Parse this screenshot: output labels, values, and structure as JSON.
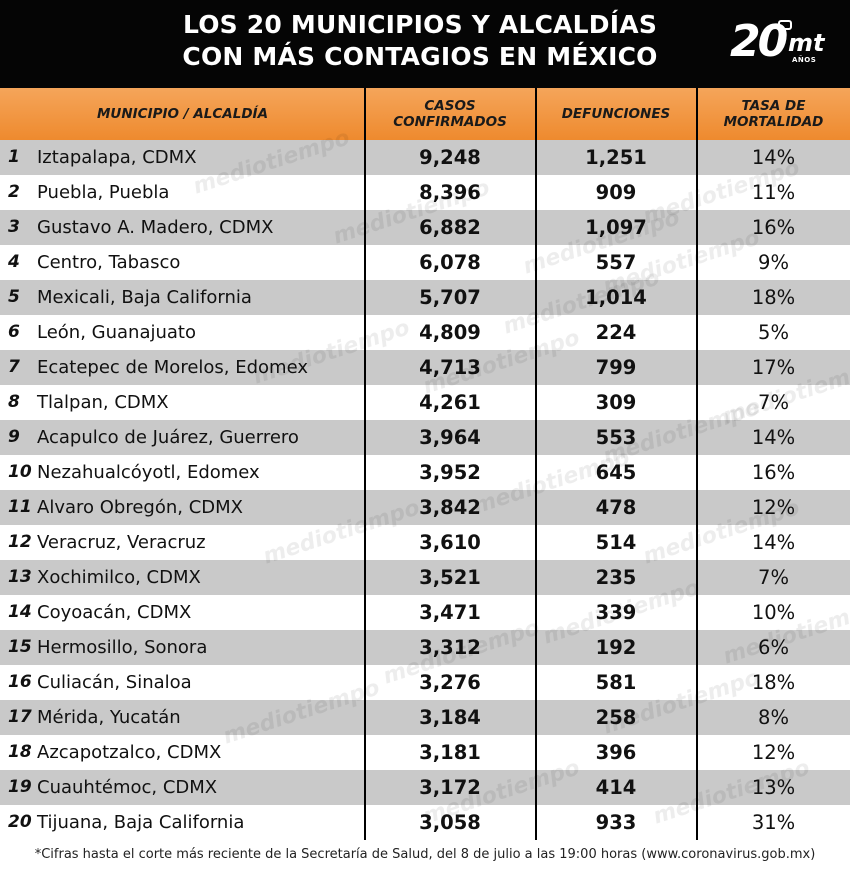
{
  "header": {
    "title_line1": "LOS 20 MUNICIPIOS Y ALCALDÍAS",
    "title_line2": "CON MÁS CONTAGIOS EN MÉXICO",
    "logo_number": "20",
    "logo_brand": "mt",
    "logo_sub": "AÑOS"
  },
  "columns": {
    "municipio": "MUNICIPIO / ALCALDÍA",
    "casos": "CASOS CONFIRMADOS",
    "defunciones": "DEFUNCIONES",
    "tasa": "TASA DE MORTALIDAD"
  },
  "watermark": "mediotiempo",
  "chart_data": {
    "type": "table",
    "title": "LOS 20 MUNICIPIOS Y ALCALDÍAS CON MÁS CONTAGIOS EN MÉXICO",
    "columns": [
      "MUNICIPIO / ALCALDÍA",
      "CASOS CONFIRMADOS",
      "DEFUNCIONES",
      "TASA DE MORTALIDAD"
    ],
    "rows": [
      {
        "rank": "1",
        "municipio": "Iztapalapa, CDMX",
        "casos": "9,248",
        "defunciones": "1,251",
        "tasa": "14%"
      },
      {
        "rank": "2",
        "municipio": "Puebla, Puebla",
        "casos": "8,396",
        "defunciones": "909",
        "tasa": "11%"
      },
      {
        "rank": "3",
        "municipio": "Gustavo A. Madero, CDMX",
        "casos": "6,882",
        "defunciones": "1,097",
        "tasa": "16%"
      },
      {
        "rank": "4",
        "municipio": "Centro, Tabasco",
        "casos": "6,078",
        "defunciones": "557",
        "tasa": "9%"
      },
      {
        "rank": "5",
        "municipio": "Mexicali, Baja California",
        "casos": "5,707",
        "defunciones": "1,014",
        "tasa": "18%"
      },
      {
        "rank": "6",
        "municipio": "León, Guanajuato",
        "casos": "4,809",
        "defunciones": "224",
        "tasa": "5%"
      },
      {
        "rank": "7",
        "municipio": "Ecatepec de Morelos, Edomex",
        "casos": "4,713",
        "defunciones": "799",
        "tasa": "17%"
      },
      {
        "rank": "8",
        "municipio": "Tlalpan, CDMX",
        "casos": "4,261",
        "defunciones": "309",
        "tasa": "7%"
      },
      {
        "rank": "9",
        "municipio": "Acapulco de Juárez, Guerrero",
        "casos": "3,964",
        "defunciones": "553",
        "tasa": "14%"
      },
      {
        "rank": "10",
        "municipio": "Nezahualcóyotl, Edomex",
        "casos": "3,952",
        "defunciones": "645",
        "tasa": "16%"
      },
      {
        "rank": "11",
        "municipio": "Alvaro Obregón, CDMX",
        "casos": "3,842",
        "defunciones": "478",
        "tasa": "12%"
      },
      {
        "rank": "12",
        "municipio": "Veracruz, Veracruz",
        "casos": "3,610",
        "defunciones": "514",
        "tasa": "14%"
      },
      {
        "rank": "13",
        "municipio": "Xochimilco, CDMX",
        "casos": "3,521",
        "defunciones": "235",
        "tasa": "7%"
      },
      {
        "rank": "14",
        "municipio": "Coyoacán, CDMX",
        "casos": "3,471",
        "defunciones": "339",
        "tasa": "10%"
      },
      {
        "rank": "15",
        "municipio": "Hermosillo, Sonora",
        "casos": "3,312",
        "defunciones": "192",
        "tasa": "6%"
      },
      {
        "rank": "16",
        "municipio": "Culiacán, Sinaloa",
        "casos": "3,276",
        "defunciones": "581",
        "tasa": "18%"
      },
      {
        "rank": "17",
        "municipio": "Mérida, Yucatán",
        "casos": "3,184",
        "defunciones": "258",
        "tasa": "8%"
      },
      {
        "rank": "18",
        "municipio": "Azcapotzalco, CDMX",
        "casos": "3,181",
        "defunciones": "396",
        "tasa": "12%"
      },
      {
        "rank": "19",
        "municipio": "Cuauhtémoc, CDMX",
        "casos": "3,172",
        "defunciones": "414",
        "tasa": "13%"
      },
      {
        "rank": "20",
        "municipio": "Tijuana, Baja California",
        "casos": "3,058",
        "defunciones": "933",
        "tasa": "31%"
      }
    ]
  },
  "footer": {
    "note": "*Cifras hasta el corte más reciente de la Secretaría de Salud, del 8 de julio a las 19:00 horas (www.coronavirus.gob.mx)"
  },
  "colors": {
    "header_bg": "#050505",
    "column_header_bg": "#ee8a2e",
    "row_shade": "#c9c9c9"
  }
}
